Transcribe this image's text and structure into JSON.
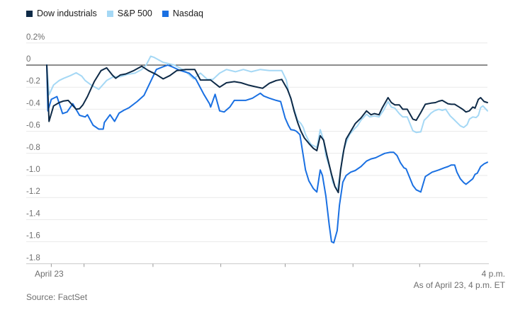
{
  "page": {
    "background": "#ffffff"
  },
  "legend": {
    "items": [
      {
        "label": "Dow industrials",
        "color": "#0e2a47"
      },
      {
        "label": "S&P 500",
        "color": "#a5d8f5"
      },
      {
        "label": "Nasdaq",
        "color": "#1a70e2"
      }
    ]
  },
  "footer": {
    "source": "Source: FactSet",
    "as_of": "As of April 23, 4 p.m. ET"
  },
  "chart_data": {
    "type": "line",
    "title": "",
    "x_axis": {
      "start_label": "April 23",
      "end_label": "4 p.m.",
      "unit": "minutes since 9:30 a.m. ET",
      "range": [
        0,
        390
      ],
      "tick_minutes": [
        4,
        33,
        94,
        154,
        211,
        271,
        330
      ],
      "grid": false
    },
    "y_axis": {
      "unit": "percent change",
      "range": [
        0.2,
        -1.8
      ],
      "ticks": [
        0.2,
        0,
        -0.2,
        -0.4,
        -0.6,
        -0.8,
        -1.0,
        -1.2,
        -1.4,
        -1.6,
        -1.8
      ],
      "tick_labels": [
        "0.2%",
        "0",
        "-0.2",
        "-0.4",
        "-0.6",
        "-0.8",
        "-1.0",
        "-1.2",
        "-1.4",
        "-1.6",
        "-1.8"
      ],
      "grid": true,
      "zero_line_color": "#1a1a1a",
      "grid_color": "#e9e9e9"
    },
    "legend_position": "top-left",
    "series": [
      {
        "name": "S&P 500",
        "color": "#a5d8f5",
        "points": [
          [
            0,
            0
          ],
          [
            2,
            -0.27
          ],
          [
            6,
            -0.18
          ],
          [
            11,
            -0.14
          ],
          [
            15,
            -0.12
          ],
          [
            21,
            -0.095
          ],
          [
            26,
            -0.07
          ],
          [
            31,
            -0.1
          ],
          [
            34,
            -0.14
          ],
          [
            40,
            -0.185
          ],
          [
            46,
            -0.22
          ],
          [
            53,
            -0.14
          ],
          [
            59,
            -0.105
          ],
          [
            65,
            -0.105
          ],
          [
            71,
            -0.085
          ],
          [
            78,
            -0.073
          ],
          [
            84,
            -0.04
          ],
          [
            88,
            0.0
          ],
          [
            92,
            0.08
          ],
          [
            95,
            0.07
          ],
          [
            103,
            0.025
          ],
          [
            113,
            0.0
          ],
          [
            122,
            -0.05
          ],
          [
            130,
            -0.125
          ],
          [
            136,
            -0.073
          ],
          [
            142,
            -0.128
          ],
          [
            147,
            -0.13
          ],
          [
            153,
            -0.073
          ],
          [
            159,
            -0.04
          ],
          [
            167,
            -0.06
          ],
          [
            174,
            -0.04
          ],
          [
            181,
            -0.06
          ],
          [
            189,
            -0.04
          ],
          [
            197,
            -0.05
          ],
          [
            205,
            -0.05
          ],
          [
            208,
            -0.05
          ],
          [
            212,
            -0.135
          ],
          [
            214,
            -0.244
          ],
          [
            217,
            -0.34
          ],
          [
            220,
            -0.436
          ],
          [
            222,
            -0.5
          ],
          [
            225,
            -0.53
          ],
          [
            227,
            -0.565
          ],
          [
            229,
            -0.628
          ],
          [
            232,
            -0.69
          ],
          [
            234,
            -0.72
          ],
          [
            237,
            -0.735
          ],
          [
            239,
            -0.747
          ],
          [
            242,
            -0.585
          ],
          [
            245,
            -0.68
          ],
          [
            247,
            -0.82
          ],
          [
            251,
            -0.95
          ],
          [
            253,
            -1.06
          ],
          [
            256,
            -1.12
          ],
          [
            257,
            -1.13
          ],
          [
            260,
            -0.97
          ],
          [
            262,
            -0.8
          ],
          [
            265,
            -0.7
          ],
          [
            268,
            -0.63
          ],
          [
            272,
            -0.58
          ],
          [
            275,
            -0.55
          ],
          [
            278,
            -0.5
          ],
          [
            283,
            -0.445
          ],
          [
            286,
            -0.47
          ],
          [
            290,
            -0.46
          ],
          [
            294,
            -0.47
          ],
          [
            298,
            -0.41
          ],
          [
            302,
            -0.33
          ],
          [
            305,
            -0.38
          ],
          [
            308,
            -0.39
          ],
          [
            312,
            -0.44
          ],
          [
            315,
            -0.47
          ],
          [
            319,
            -0.47
          ],
          [
            324,
            -0.595
          ],
          [
            327,
            -0.61
          ],
          [
            331,
            -0.605
          ],
          [
            334,
            -0.5
          ],
          [
            337,
            -0.47
          ],
          [
            340,
            -0.435
          ],
          [
            343,
            -0.415
          ],
          [
            347,
            -0.4
          ],
          [
            350,
            -0.41
          ],
          [
            353,
            -0.4
          ],
          [
            357,
            -0.46
          ],
          [
            360,
            -0.49
          ],
          [
            363,
            -0.52
          ],
          [
            366,
            -0.55
          ],
          [
            369,
            -0.565
          ],
          [
            372,
            -0.54
          ],
          [
            374,
            -0.49
          ],
          [
            377,
            -0.47
          ],
          [
            380,
            -0.475
          ],
          [
            382,
            -0.455
          ],
          [
            384,
            -0.385
          ],
          [
            386,
            -0.37
          ],
          [
            390,
            -0.415
          ]
        ]
      },
      {
        "name": "Nasdaq",
        "color": "#1a70e2",
        "points": [
          [
            0,
            0
          ],
          [
            1,
            -0.415
          ],
          [
            4,
            -0.31
          ],
          [
            9,
            -0.285
          ],
          [
            14,
            -0.44
          ],
          [
            18,
            -0.425
          ],
          [
            23,
            -0.35
          ],
          [
            29,
            -0.455
          ],
          [
            34,
            -0.47
          ],
          [
            36,
            -0.45
          ],
          [
            41,
            -0.545
          ],
          [
            46,
            -0.58
          ],
          [
            50,
            -0.58
          ],
          [
            51,
            -0.52
          ],
          [
            56,
            -0.45
          ],
          [
            60,
            -0.51
          ],
          [
            64,
            -0.435
          ],
          [
            68,
            -0.41
          ],
          [
            73,
            -0.385
          ],
          [
            80,
            -0.33
          ],
          [
            86,
            -0.275
          ],
          [
            97,
            -0.04
          ],
          [
            103,
            -0.015
          ],
          [
            107,
            0.0
          ],
          [
            112,
            -0.02
          ],
          [
            117,
            -0.045
          ],
          [
            126,
            -0.073
          ],
          [
            132,
            -0.128
          ],
          [
            139,
            -0.265
          ],
          [
            144,
            -0.35
          ],
          [
            145,
            -0.38
          ],
          [
            149,
            -0.265
          ],
          [
            153,
            -0.415
          ],
          [
            157,
            -0.425
          ],
          [
            162,
            -0.38
          ],
          [
            166,
            -0.32
          ],
          [
            176,
            -0.32
          ],
          [
            182,
            -0.3
          ],
          [
            189,
            -0.255
          ],
          [
            192,
            -0.28
          ],
          [
            197,
            -0.3
          ],
          [
            203,
            -0.32
          ],
          [
            207,
            -0.33
          ],
          [
            211,
            -0.48
          ],
          [
            214,
            -0.55
          ],
          [
            216,
            -0.585
          ],
          [
            219,
            -0.59
          ],
          [
            221,
            -0.6
          ],
          [
            224,
            -0.63
          ],
          [
            227,
            -0.82
          ],
          [
            229,
            -0.95
          ],
          [
            232,
            -1.05
          ],
          [
            236,
            -1.12
          ],
          [
            239,
            -1.15
          ],
          [
            242,
            -0.95
          ],
          [
            244,
            -1.0
          ],
          [
            247,
            -1.185
          ],
          [
            250,
            -1.45
          ],
          [
            252,
            -1.6
          ],
          [
            254,
            -1.61
          ],
          [
            257,
            -1.5
          ],
          [
            259,
            -1.27
          ],
          [
            262,
            -1.06
          ],
          [
            265,
            -1.0
          ],
          [
            269,
            -0.97
          ],
          [
            273,
            -0.955
          ],
          [
            278,
            -0.92
          ],
          [
            283,
            -0.87
          ],
          [
            287,
            -0.85
          ],
          [
            291,
            -0.84
          ],
          [
            295,
            -0.82
          ],
          [
            299,
            -0.8
          ],
          [
            304,
            -0.79
          ],
          [
            307,
            -0.79
          ],
          [
            310,
            -0.82
          ],
          [
            313,
            -0.885
          ],
          [
            316,
            -0.93
          ],
          [
            318,
            -0.94
          ],
          [
            324,
            -1.09
          ],
          [
            327,
            -1.13
          ],
          [
            329,
            -1.14
          ],
          [
            331,
            -1.15
          ],
          [
            335,
            -1.01
          ],
          [
            338,
            -0.99
          ],
          [
            341,
            -0.97
          ],
          [
            344,
            -0.96
          ],
          [
            347,
            -0.95
          ],
          [
            352,
            -0.93
          ],
          [
            355,
            -0.92
          ],
          [
            358,
            -0.905
          ],
          [
            361,
            -0.905
          ],
          [
            363,
            -0.97
          ],
          [
            366,
            -1.03
          ],
          [
            369,
            -1.065
          ],
          [
            371,
            -1.08
          ],
          [
            377,
            -1.03
          ],
          [
            379,
            -0.99
          ],
          [
            381,
            -0.98
          ],
          [
            384,
            -0.92
          ],
          [
            387,
            -0.895
          ],
          [
            390,
            -0.88
          ]
        ]
      },
      {
        "name": "Dow industrials",
        "color": "#0e2a47",
        "points": [
          [
            0,
            0
          ],
          [
            2,
            -0.51
          ],
          [
            6,
            -0.37
          ],
          [
            11,
            -0.34
          ],
          [
            15,
            -0.325
          ],
          [
            19,
            -0.32
          ],
          [
            26,
            -0.4
          ],
          [
            29,
            -0.395
          ],
          [
            32,
            -0.36
          ],
          [
            36,
            -0.285
          ],
          [
            42,
            -0.15
          ],
          [
            48,
            -0.05
          ],
          [
            53,
            -0.025
          ],
          [
            58,
            -0.09
          ],
          [
            61,
            -0.12
          ],
          [
            65,
            -0.09
          ],
          [
            70,
            -0.08
          ],
          [
            77,
            -0.05
          ],
          [
            84,
            -0.01
          ],
          [
            90,
            -0.05
          ],
          [
            97,
            -0.085
          ],
          [
            103,
            -0.125
          ],
          [
            109,
            -0.095
          ],
          [
            115,
            -0.05
          ],
          [
            123,
            -0.04
          ],
          [
            131,
            -0.04
          ],
          [
            136,
            -0.135
          ],
          [
            145,
            -0.135
          ],
          [
            153,
            -0.2
          ],
          [
            159,
            -0.16
          ],
          [
            166,
            -0.15
          ],
          [
            172,
            -0.16
          ],
          [
            178,
            -0.18
          ],
          [
            184,
            -0.195
          ],
          [
            191,
            -0.21
          ],
          [
            197,
            -0.165
          ],
          [
            203,
            -0.14
          ],
          [
            208,
            -0.13
          ],
          [
            213,
            -0.22
          ],
          [
            216,
            -0.3
          ],
          [
            219,
            -0.42
          ],
          [
            222,
            -0.52
          ],
          [
            225,
            -0.6
          ],
          [
            228,
            -0.66
          ],
          [
            232,
            -0.71
          ],
          [
            236,
            -0.755
          ],
          [
            239,
            -0.775
          ],
          [
            242,
            -0.64
          ],
          [
            245,
            -0.68
          ],
          [
            248,
            -0.82
          ],
          [
            252,
            -0.99
          ],
          [
            255,
            -1.1
          ],
          [
            258,
            -1.155
          ],
          [
            260,
            -0.95
          ],
          [
            263,
            -0.76
          ],
          [
            265,
            -0.67
          ],
          [
            269,
            -0.6
          ],
          [
            273,
            -0.53
          ],
          [
            278,
            -0.48
          ],
          [
            283,
            -0.415
          ],
          [
            287,
            -0.45
          ],
          [
            290,
            -0.44
          ],
          [
            294,
            -0.45
          ],
          [
            297,
            -0.385
          ],
          [
            302,
            -0.295
          ],
          [
            305,
            -0.34
          ],
          [
            308,
            -0.36
          ],
          [
            312,
            -0.36
          ],
          [
            315,
            -0.4
          ],
          [
            319,
            -0.4
          ],
          [
            324,
            -0.49
          ],
          [
            327,
            -0.5
          ],
          [
            331,
            -0.43
          ],
          [
            335,
            -0.355
          ],
          [
            340,
            -0.345
          ],
          [
            344,
            -0.34
          ],
          [
            347,
            -0.327
          ],
          [
            350,
            -0.32
          ],
          [
            355,
            -0.35
          ],
          [
            358,
            -0.355
          ],
          [
            361,
            -0.355
          ],
          [
            365,
            -0.38
          ],
          [
            368,
            -0.4
          ],
          [
            371,
            -0.425
          ],
          [
            374,
            -0.415
          ],
          [
            377,
            -0.38
          ],
          [
            379,
            -0.39
          ],
          [
            382,
            -0.31
          ],
          [
            384,
            -0.295
          ],
          [
            387,
            -0.33
          ],
          [
            390,
            -0.34
          ]
        ]
      }
    ]
  }
}
